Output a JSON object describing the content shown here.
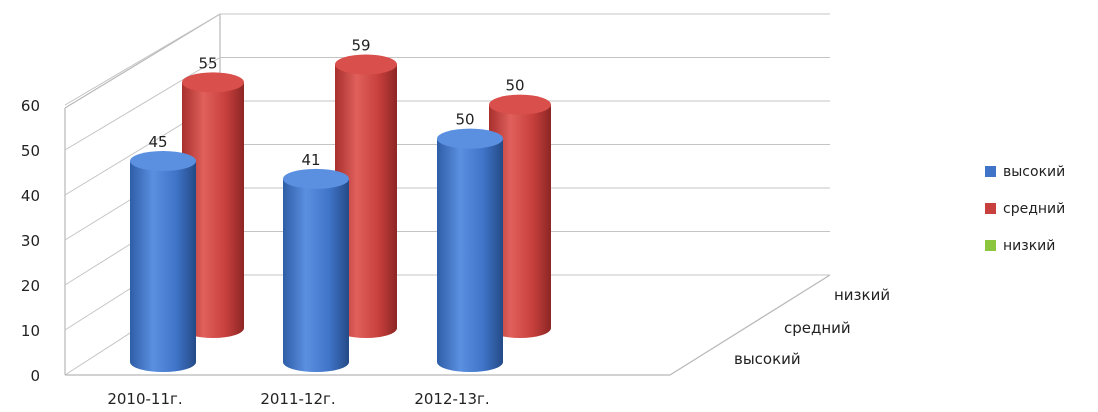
{
  "chart_data": {
    "type": "bar",
    "categories": [
      "2010-11г.",
      "2011-12г.",
      "2012-13г."
    ],
    "depth_categories": [
      "высокий",
      "средний",
      "низкий"
    ],
    "series": [
      {
        "name": "высокий",
        "values": [
          45,
          41,
          50
        ],
        "color": "#3f74c8"
      },
      {
        "name": "средний",
        "values": [
          55,
          59,
          50
        ],
        "color": "#c8403d"
      },
      {
        "name": "низкий",
        "values": [
          null,
          null,
          null
        ],
        "color": "#8cc63f"
      }
    ],
    "y_ticks": [
      "0",
      "10",
      "20",
      "30",
      "40",
      "50",
      "60"
    ],
    "ylim": [
      0,
      70
    ],
    "grid": true,
    "legend_position": "right",
    "three_d": true
  }
}
